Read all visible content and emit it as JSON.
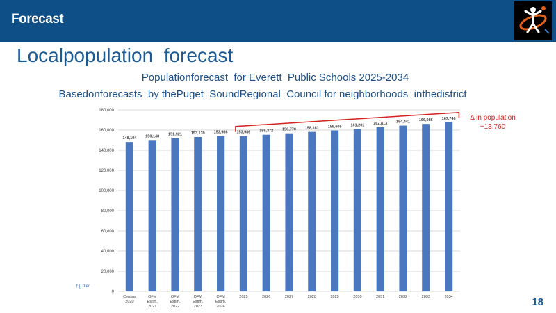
{
  "header": {
    "title": "Forecast"
  },
  "slide": {
    "heading": "Localpopulation  forecast",
    "subtitle": "Populationforecast  for Everett  Public Schools 2025-2034",
    "subtitle2": "Basedonforecasts  by thePuget  SoundRegional  Council for neighborhoods  inthedistrict",
    "page_number": "18",
    "footnote": "† [] fker",
    "delta_line1": "Δ in population",
    "delta_line2": "+13,760",
    "logo_icon": "figures-logo-icon"
  },
  "colors": {
    "header_bg": "#0d4f86",
    "bar": "#4b77be",
    "annotation": "#d42020"
  },
  "chart_data": {
    "type": "bar",
    "categories": [
      "Census 2020",
      "OFM Estim. 2021",
      "OFM Estim. 2022",
      "OFM Estim. 2023",
      "OFM Estim. 2024",
      "2025",
      "2026",
      "2027",
      "2028",
      "2029",
      "2030",
      "2031",
      "2032",
      "2033",
      "2034"
    ],
    "values": [
      148194,
      150148,
      151921,
      153139,
      153986,
      153986,
      155372,
      156770,
      158181,
      159605,
      161201,
      162813,
      164441,
      166086,
      167746
    ],
    "value_labels": [
      "148,194",
      "150,148",
      "151,921",
      "153,139",
      "153,986",
      "153,986",
      "155,372",
      "156,770",
      "158,181",
      "159,605",
      "161,201",
      "162,813",
      "164,441",
      "166,086",
      "167,746"
    ],
    "y_ticks": [
      "0",
      "20,000",
      "40,000",
      "60,000",
      "80,000",
      "100,000",
      "120,000",
      "140,000",
      "160,000",
      "180,000"
    ],
    "ylim": [
      0,
      180000
    ],
    "grid": true
  }
}
